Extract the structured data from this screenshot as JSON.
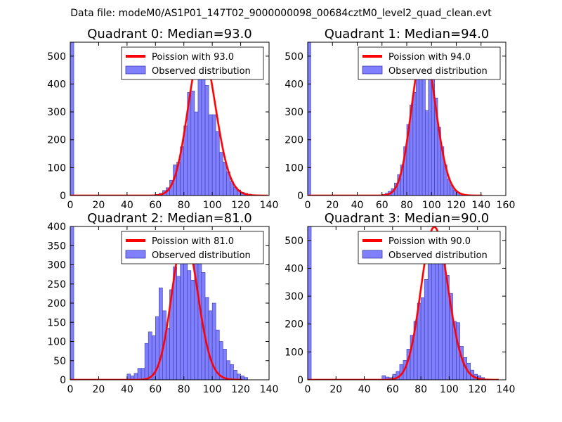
{
  "figure": {
    "suptitle": "Data file: modeM0/AS1P01_147T02_9000000098_00684cztM0_level2_quad_clean.evt"
  },
  "colors": {
    "hist_fill": "#8080ff",
    "hist_edge": "#3a3aa8",
    "fit_line": "#ff0000",
    "axis": "#000000"
  },
  "chart_data": [
    {
      "type": "bar",
      "title": "Quadrant 0: Median=93.0",
      "xlim": [
        0,
        140
      ],
      "ylim": [
        0,
        550
      ],
      "xticks": [
        0,
        20,
        40,
        60,
        80,
        100,
        120,
        140
      ],
      "yticks": [
        0,
        100,
        200,
        300,
        400,
        500
      ],
      "legend_position": "top-right",
      "legend": [
        "Poission with 93.0",
        "Observed distribution"
      ],
      "poisson_mean": 93.0,
      "fit_peak": 525,
      "hist": {
        "bin_width": 2.5,
        "bins": [
          [
            0,
            550
          ],
          [
            60,
            4
          ],
          [
            62.5,
            8
          ],
          [
            65,
            18
          ],
          [
            67.5,
            28
          ],
          [
            70,
            55
          ],
          [
            72.5,
            110
          ],
          [
            75,
            120
          ],
          [
            77.5,
            175
          ],
          [
            80,
            250
          ],
          [
            82.5,
            370
          ],
          [
            85,
            375
          ],
          [
            87.5,
            300
          ],
          [
            90,
            450
          ],
          [
            92.5,
            430
          ],
          [
            95,
            395
          ],
          [
            97.5,
            290
          ],
          [
            100,
            290
          ],
          [
            102.5,
            230
          ],
          [
            105,
            155
          ],
          [
            107.5,
            120
          ],
          [
            110,
            85
          ],
          [
            112.5,
            50
          ],
          [
            115,
            30
          ],
          [
            117.5,
            20
          ],
          [
            120,
            12
          ],
          [
            122.5,
            8
          ],
          [
            125,
            5
          ],
          [
            127.5,
            3
          ]
        ]
      }
    },
    {
      "type": "bar",
      "title": "Quadrant 1: Median=94.0",
      "xlim": [
        0,
        160
      ],
      "ylim": [
        0,
        550
      ],
      "xticks": [
        0,
        20,
        40,
        60,
        80,
        100,
        120,
        140,
        160
      ],
      "yticks": [
        0,
        100,
        200,
        300,
        400,
        500
      ],
      "legend_position": "top-right",
      "legend": [
        "Poission with 94.0",
        "Observed distribution"
      ],
      "poisson_mean": 94.0,
      "fit_peak": 525,
      "hist": {
        "bin_width": 2.5,
        "bins": [
          [
            0,
            550
          ],
          [
            60,
            4
          ],
          [
            62.5,
            8
          ],
          [
            65,
            15
          ],
          [
            67.5,
            25
          ],
          [
            70,
            45
          ],
          [
            72.5,
            75
          ],
          [
            75,
            110
          ],
          [
            77.5,
            175
          ],
          [
            80,
            255
          ],
          [
            82.5,
            325
          ],
          [
            85,
            370
          ],
          [
            87.5,
            420
          ],
          [
            90,
            450
          ],
          [
            92.5,
            460
          ],
          [
            95,
            305
          ],
          [
            97.5,
            440
          ],
          [
            100,
            430
          ],
          [
            102.5,
            350
          ],
          [
            105,
            245
          ],
          [
            107.5,
            175
          ],
          [
            110,
            110
          ],
          [
            112.5,
            60
          ],
          [
            115,
            38
          ],
          [
            117.5,
            20
          ],
          [
            120,
            12
          ],
          [
            122.5,
            7
          ],
          [
            125,
            4
          ]
        ]
      }
    },
    {
      "type": "bar",
      "title": "Quadrant 2: Median=81.0",
      "xlim": [
        0,
        140
      ],
      "ylim": [
        0,
        400
      ],
      "xticks": [
        0,
        20,
        40,
        60,
        80,
        100,
        120,
        140
      ],
      "yticks": [
        0,
        50,
        100,
        150,
        200,
        250,
        300,
        350,
        400
      ],
      "legend_position": "top-right",
      "legend": [
        "Poission with 81.0",
        "Observed distribution"
      ],
      "poisson_mean": 81.0,
      "fit_peak": 378,
      "hist": {
        "bin_width": 2.5,
        "bins": [
          [
            0,
            400
          ],
          [
            40,
            15
          ],
          [
            42.5,
            10
          ],
          [
            45,
            17
          ],
          [
            47.5,
            30
          ],
          [
            50,
            30
          ],
          [
            52.5,
            95
          ],
          [
            55,
            125
          ],
          [
            57.5,
            115
          ],
          [
            60,
            165
          ],
          [
            62.5,
            240
          ],
          [
            65,
            180
          ],
          [
            67.5,
            135
          ],
          [
            70,
            235
          ],
          [
            72.5,
            295
          ],
          [
            75,
            270
          ],
          [
            77.5,
            320
          ],
          [
            80,
            375
          ],
          [
            82.5,
            285
          ],
          [
            85,
            260
          ],
          [
            87.5,
            370
          ],
          [
            90,
            310
          ],
          [
            92.5,
            280
          ],
          [
            95,
            215
          ],
          [
            97.5,
            180
          ],
          [
            100,
            200
          ],
          [
            102.5,
            130
          ],
          [
            105,
            100
          ],
          [
            107.5,
            80
          ],
          [
            110,
            50
          ],
          [
            112.5,
            40
          ],
          [
            115,
            25
          ],
          [
            117.5,
            15
          ],
          [
            120,
            10
          ],
          [
            122.5,
            6
          ]
        ]
      }
    },
    {
      "type": "bar",
      "title": "Quadrant 3: Median=90.0",
      "xlim": [
        0,
        140
      ],
      "ylim": [
        0,
        550
      ],
      "xticks": [
        0,
        20,
        40,
        60,
        80,
        100,
        120,
        140
      ],
      "yticks": [
        0,
        100,
        200,
        300,
        400,
        500
      ],
      "legend_position": "top-right",
      "legend": [
        "Poission with 90.0",
        "Observed distribution"
      ],
      "poisson_mean": 90.0,
      "fit_peak": 548,
      "hist": {
        "bin_width": 2.5,
        "bins": [
          [
            0,
            550
          ],
          [
            52.5,
            15
          ],
          [
            55,
            10
          ],
          [
            57.5,
            8
          ],
          [
            60,
            20
          ],
          [
            62.5,
            30
          ],
          [
            65,
            55
          ],
          [
            67.5,
            70
          ],
          [
            70,
            110
          ],
          [
            72.5,
            160
          ],
          [
            75,
            210
          ],
          [
            77.5,
            275
          ],
          [
            80,
            295
          ],
          [
            82.5,
            360
          ],
          [
            85,
            420
          ],
          [
            87.5,
            460
          ],
          [
            90,
            510
          ],
          [
            92.5,
            420
          ],
          [
            95,
            465
          ],
          [
            97.5,
            375
          ],
          [
            100,
            310
          ],
          [
            102.5,
            210
          ],
          [
            105,
            205
          ],
          [
            107.5,
            120
          ],
          [
            110,
            80
          ],
          [
            112.5,
            60
          ],
          [
            115,
            35
          ],
          [
            117.5,
            20
          ],
          [
            120,
            15
          ],
          [
            122.5,
            8
          ]
        ]
      }
    }
  ]
}
